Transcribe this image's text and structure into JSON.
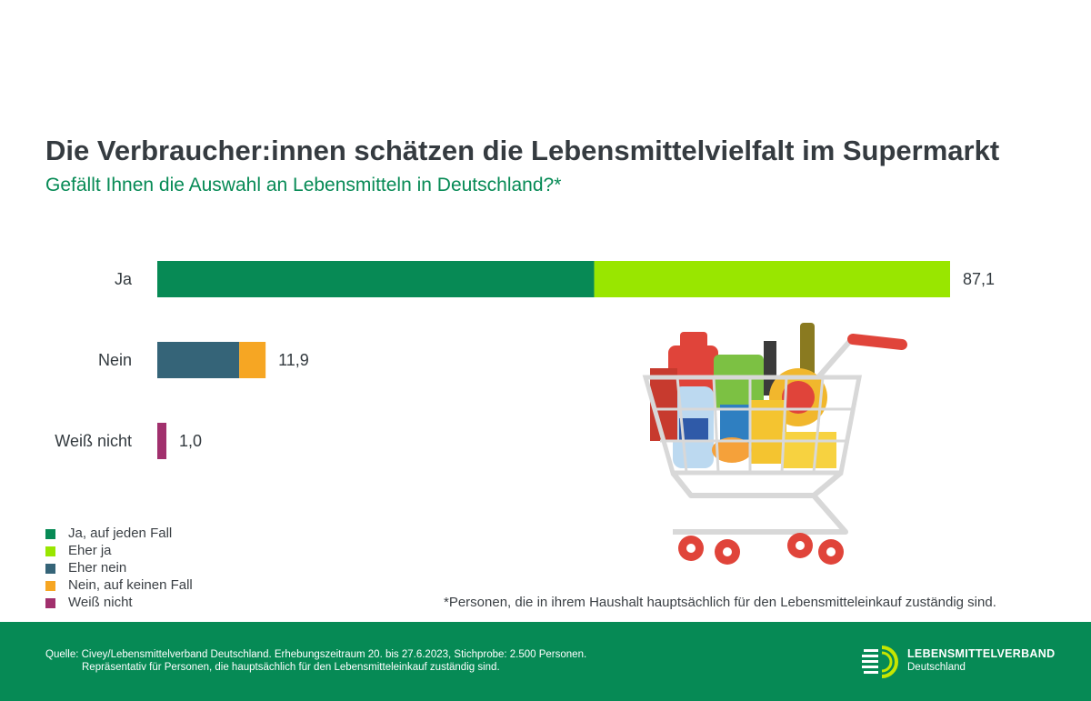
{
  "title": "Die Verbraucher:innen schätzen die Lebensmittelvielfalt im Supermarkt",
  "subtitle": "Gefällt Ihnen die Auswahl an Lebensmitteln in Deutschland?*",
  "chart_data": {
    "type": "bar",
    "orientation": "horizontal",
    "stacked": true,
    "categories": [
      "Ja",
      "Nein",
      "Weiß nicht"
    ],
    "totals": [
      "87,1",
      "11,9",
      "1,0"
    ],
    "series": [
      {
        "name": "Ja, auf jeden Fall",
        "color": "#078a55",
        "values": [
          48.0,
          0,
          0
        ]
      },
      {
        "name": "Eher ja",
        "color": "#99e600",
        "values": [
          39.1,
          0,
          0
        ]
      },
      {
        "name": "Eher nein",
        "color": "#356478",
        "values": [
          0,
          9.0,
          0
        ]
      },
      {
        "name": "Nein, auf keinen Fall",
        "color": "#f6a623",
        "values": [
          0,
          2.9,
          0
        ]
      },
      {
        "name": "Weiß nicht",
        "color": "#a1306d",
        "values": [
          0,
          0,
          1.0
        ]
      }
    ],
    "xlim": [
      0,
      87.1
    ],
    "grid": false,
    "legend_position": "bottom-left"
  },
  "footnote": "*Personen, die in ihrem Haushalt hauptsächlich für den Lebensmitteleinkauf zuständig sind.",
  "footer": {
    "source_line1": "Quelle: Civey/Lebensmittelverband Deutschland. Erhebungszeitraum 20. bis 27.6.2023, Stichprobe: 2.500 Personen.",
    "source_line2": "Repräsentativ für Personen, die hauptsächlich für den Lebensmitteleinkauf zuständig sind.",
    "logo_name": "LEBENSMITTELVERBAND",
    "logo_sub": "Deutschland"
  },
  "colors": {
    "brand_green": "#068a55",
    "title": "#353b40"
  }
}
